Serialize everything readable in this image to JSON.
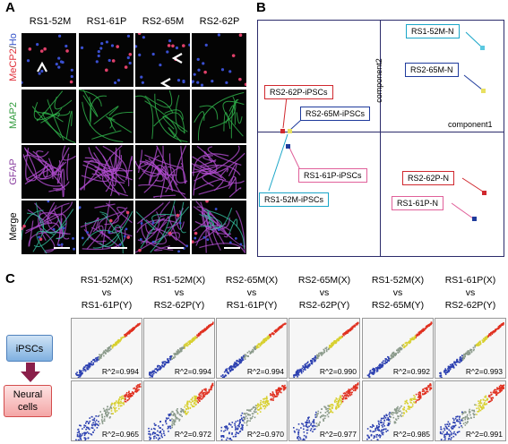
{
  "panel_a": {
    "letter": "A",
    "columns": [
      "RS1-52M",
      "RS1-61P",
      "RS2-65M",
      "RS2-62P"
    ],
    "rows": [
      {
        "label_parts": [
          "MeCP2",
          "/",
          "Ho"
        ],
        "colors": [
          "#e0303a",
          "#333333",
          "#3050c8"
        ],
        "stain": "mecp2"
      },
      {
        "label_parts": [
          "MAP2"
        ],
        "colors": [
          "#2e9a3a"
        ],
        "stain": "map2"
      },
      {
        "label_parts": [
          "GFAP"
        ],
        "colors": [
          "#8a3fa0"
        ],
        "stain": "gfap"
      },
      {
        "label_parts": [
          "Merge"
        ],
        "colors": [
          "#000000"
        ],
        "stain": "merge"
      }
    ]
  },
  "panel_b": {
    "letter": "B",
    "axis_x": "component1",
    "axis_y": "component2",
    "labels": [
      {
        "text": "RS1-52M-N",
        "border": "#1aa6c8"
      },
      {
        "text": "RS2-65M-N",
        "border": "#1f3b9c"
      },
      {
        "text": "RS2-62P-iPSCs",
        "border": "#d0282e"
      },
      {
        "text": "RS2-65M-iPSCs",
        "border": "#1f3b9c"
      },
      {
        "text": "RS1-61P-iPSCs",
        "border": "#e0609a"
      },
      {
        "text": "RS1-52M-iPSCs",
        "border": "#1aa6c8"
      },
      {
        "text": "RS2-62P-N",
        "border": "#d0282e"
      },
      {
        "text": "RS1-61P-N",
        "border": "#e0609a"
      }
    ]
  },
  "panel_c": {
    "letter": "C",
    "comparisons": [
      {
        "x": "RS1-52M(X)",
        "vs": "vs",
        "y": "RS1-61P(Y)"
      },
      {
        "x": "RS1-52M(X)",
        "vs": "vs",
        "y": "RS2-62P(Y)"
      },
      {
        "x": "RS2-65M(X)",
        "vs": "vs",
        "y": "RS1-61P(Y)"
      },
      {
        "x": "RS2-65M(X)",
        "vs": "vs",
        "y": "RS2-62P(Y)"
      },
      {
        "x": "RS1-52M(X)",
        "vs": "vs",
        "y": "RS2-65M(Y)"
      },
      {
        "x": "RS1-61P(X)",
        "vs": "vs",
        "y": "RS2-62P(Y)"
      }
    ],
    "row_labels": {
      "ipscs": "iPSCs",
      "neural_line1": "Neural",
      "neural_line2": "cells"
    },
    "ipsc_r2": [
      "R^2=0.994",
      "R^2=0.994",
      "R^2=0.994",
      "R^2=0.990",
      "R^2=0.992",
      "R^2=0.993"
    ],
    "neural_r2": [
      "R^2=0.965",
      "R^2=0.972",
      "R^2=0.970",
      "R^2=0.977",
      "R^2=0.985",
      "R^2=0.991"
    ]
  }
}
